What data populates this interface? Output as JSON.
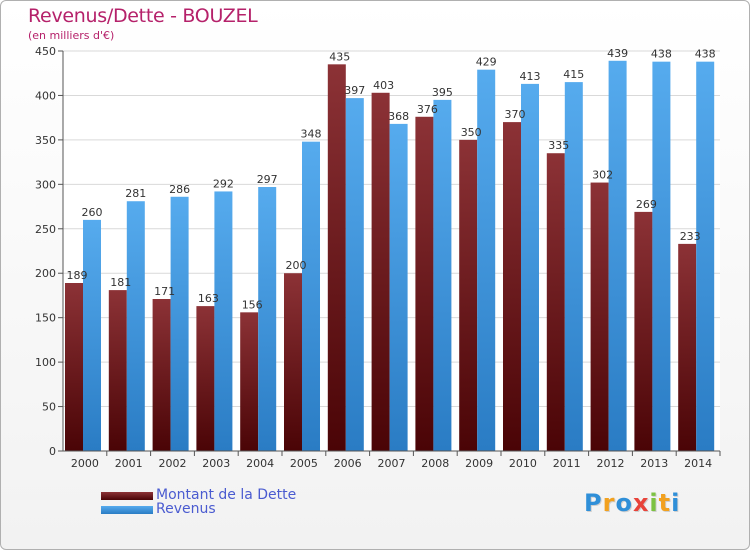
{
  "chart_data": {
    "type": "bar",
    "title": "Revenus/Dette - BOUZEL",
    "subtitle": "(en milliers d'€)",
    "categories": [
      "2000",
      "2001",
      "2002",
      "2003",
      "2004",
      "2005",
      "2006",
      "2007",
      "2008",
      "2009",
      "2010",
      "2011",
      "2012",
      "2013",
      "2014"
    ],
    "series": [
      {
        "name": "Montant de la Dette",
        "color": "#7a1e22",
        "values": [
          189,
          181,
          171,
          163,
          156,
          200,
          435,
          403,
          376,
          350,
          370,
          335,
          302,
          269,
          233
        ]
      },
      {
        "name": "Revenus",
        "color": "#3b96de",
        "values": [
          260,
          281,
          286,
          292,
          297,
          348,
          397,
          368,
          395,
          429,
          413,
          415,
          439,
          438,
          438
        ]
      }
    ],
    "ylim": [
      0,
      450
    ],
    "yticks": [
      0,
      50,
      100,
      150,
      200,
      250,
      300,
      350,
      400,
      450
    ],
    "grid": true,
    "legend_position": "bottom-left"
  },
  "logo": {
    "letters": [
      "P",
      "r",
      "o",
      "x",
      "i",
      "t",
      "i"
    ],
    "colors": [
      "#2f8fd8",
      "#f2a11f",
      "#2f8fd8",
      "#e8433a",
      "#7cc242",
      "#f2a11f",
      "#2f8fd8"
    ]
  }
}
